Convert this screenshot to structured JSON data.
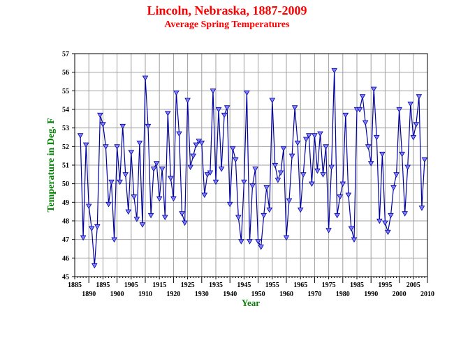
{
  "chart_data": {
    "type": "line",
    "title": "Lincoln, Nebraska, 1887-2009",
    "subtitle": "Average Spring Temperatures",
    "xlabel": "Year",
    "ylabel": "Temperature in Deg. F",
    "xlim": [
      1885,
      2010
    ],
    "ylim": [
      45,
      57
    ],
    "grid": true,
    "colors": {
      "title": "#ff0000",
      "axis_label": "#008000",
      "line": "#0000a0",
      "marker": "#8080ff"
    },
    "x_ticks_upper": [
      "1885",
      "1895",
      "1905",
      "1915",
      "1925",
      "1935",
      "1945",
      "1955",
      "1965",
      "1975",
      "1985",
      "1995",
      "2005"
    ],
    "x_ticks_lower": [
      "1890",
      "1900",
      "1910",
      "1920",
      "1930",
      "1940",
      "1950",
      "1960",
      "1970",
      "1980",
      "1990",
      "2000",
      "2010"
    ],
    "y_ticks": [
      "45",
      "46",
      "47",
      "48",
      "49",
      "50",
      "51",
      "52",
      "53",
      "54",
      "55",
      "56",
      "57"
    ],
    "x": [
      1887,
      1888,
      1889,
      1890,
      1891,
      1892,
      1893,
      1894,
      1895,
      1896,
      1897,
      1898,
      1899,
      1900,
      1901,
      1902,
      1903,
      1904,
      1905,
      1906,
      1907,
      1908,
      1909,
      1910,
      1911,
      1912,
      1913,
      1914,
      1915,
      1916,
      1917,
      1918,
      1919,
      1920,
      1921,
      1922,
      1923,
      1924,
      1925,
      1926,
      1927,
      1928,
      1929,
      1930,
      1931,
      1932,
      1933,
      1934,
      1935,
      1936,
      1937,
      1938,
      1939,
      1940,
      1941,
      1942,
      1943,
      1944,
      1945,
      1946,
      1947,
      1948,
      1949,
      1950,
      1951,
      1952,
      1953,
      1954,
      1955,
      1956,
      1957,
      1958,
      1959,
      1960,
      1961,
      1962,
      1963,
      1964,
      1965,
      1966,
      1967,
      1968,
      1969,
      1970,
      1971,
      1972,
      1973,
      1974,
      1975,
      1976,
      1977,
      1978,
      1979,
      1980,
      1981,
      1982,
      1983,
      1984,
      1985,
      1986,
      1987,
      1988,
      1989,
      1990,
      1991,
      1992,
      1993,
      1994,
      1995,
      1996,
      1997,
      1998,
      1999,
      2000,
      2001,
      2002,
      2003,
      2004,
      2005,
      2006,
      2007,
      2008,
      2009
    ],
    "values": [
      52.6,
      47.1,
      52.1,
      48.8,
      47.6,
      45.6,
      47.7,
      53.7,
      53.2,
      52.0,
      48.9,
      50.1,
      47.0,
      52.0,
      50.1,
      53.1,
      50.5,
      48.5,
      51.7,
      49.3,
      48.1,
      52.2,
      47.8,
      55.7,
      53.1,
      48.3,
      50.8,
      51.1,
      49.2,
      50.8,
      48.2,
      53.8,
      50.3,
      49.2,
      54.9,
      52.7,
      48.4,
      47.9,
      54.5,
      50.9,
      51.5,
      52.1,
      52.3,
      52.2,
      49.4,
      50.5,
      50.6,
      55.0,
      50.1,
      54.0,
      50.8,
      53.7,
      54.1,
      48.9,
      51.9,
      51.3,
      48.2,
      46.9,
      50.1,
      54.9,
      46.9,
      49.9,
      50.8,
      46.9,
      46.6,
      48.3,
      49.8,
      48.6,
      54.5,
      51.0,
      50.2,
      50.6,
      51.9,
      47.1,
      49.1,
      51.5,
      54.1,
      52.2,
      48.6,
      50.5,
      52.4,
      52.6,
      50.0,
      52.6,
      50.7,
      52.7,
      50.5,
      52.0,
      47.5,
      50.9,
      56.1,
      48.3,
      49.3,
      50.0,
      53.7,
      49.4,
      47.6,
      47.0,
      54.0,
      54.0,
      54.7,
      53.3,
      52.0,
      51.1,
      55.1,
      52.5,
      48.0,
      51.6,
      47.9,
      47.4,
      48.3,
      49.8,
      50.5,
      54.0,
      51.6,
      48.4,
      50.9,
      54.3,
      52.5,
      53.2,
      54.7,
      48.7,
      51.3
    ]
  }
}
